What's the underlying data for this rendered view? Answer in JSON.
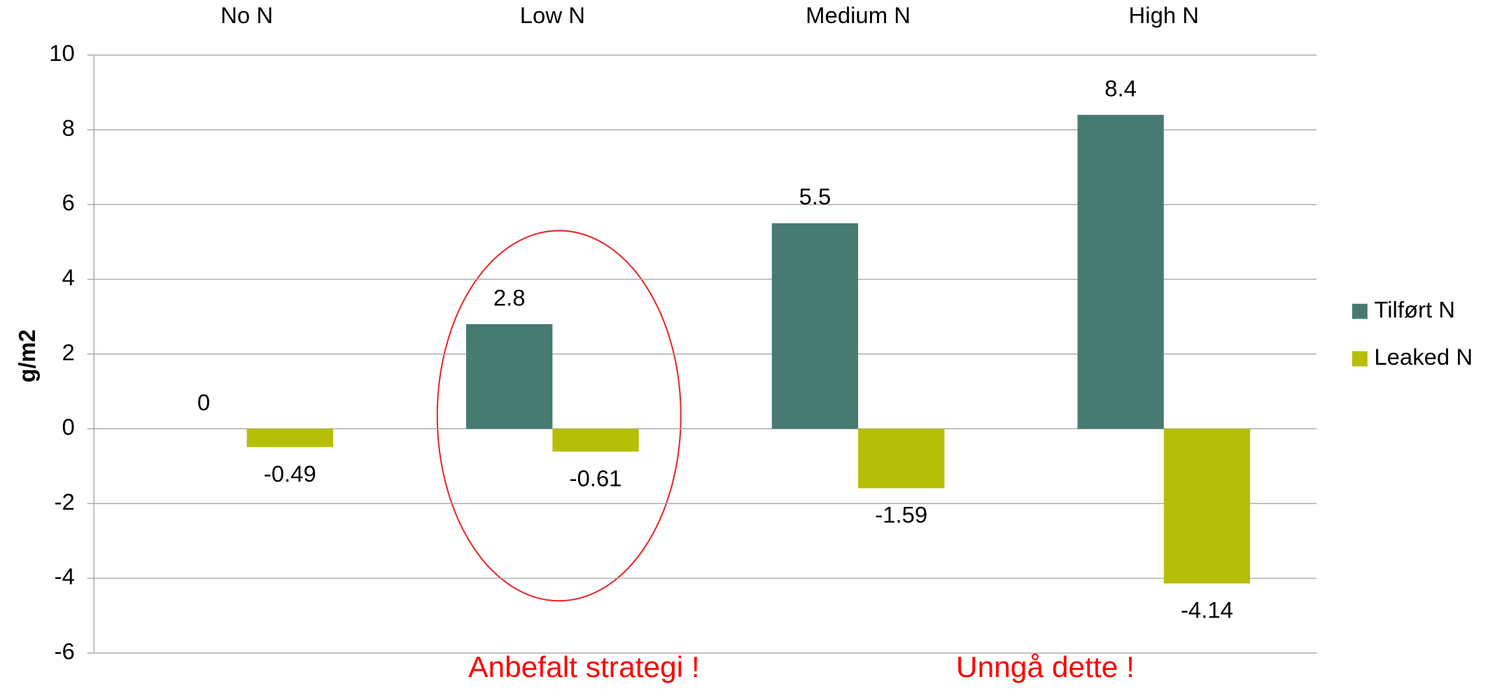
{
  "chart_data": {
    "type": "bar",
    "ylabel": "g/m2",
    "categories": [
      "No N",
      "Low N",
      "Medium N",
      "High N"
    ],
    "series": [
      {
        "name": "Tilført N",
        "color": "#477b72",
        "values": [
          0,
          2.8,
          5.5,
          8.4
        ]
      },
      {
        "name": "Leaked N",
        "color": "#b5bf08",
        "values": [
          -0.49,
          -0.61,
          -1.59,
          -4.14
        ]
      }
    ],
    "ylim": [
      -6,
      10
    ],
    "yticks": [
      -6,
      -4,
      -2,
      0,
      2,
      4,
      6,
      8,
      10
    ],
    "grid": true,
    "legend": "right",
    "annotations": [
      "Anbefalt strategi !",
      "Unngå dette !"
    ],
    "annotation_color": "#ff0000"
  }
}
